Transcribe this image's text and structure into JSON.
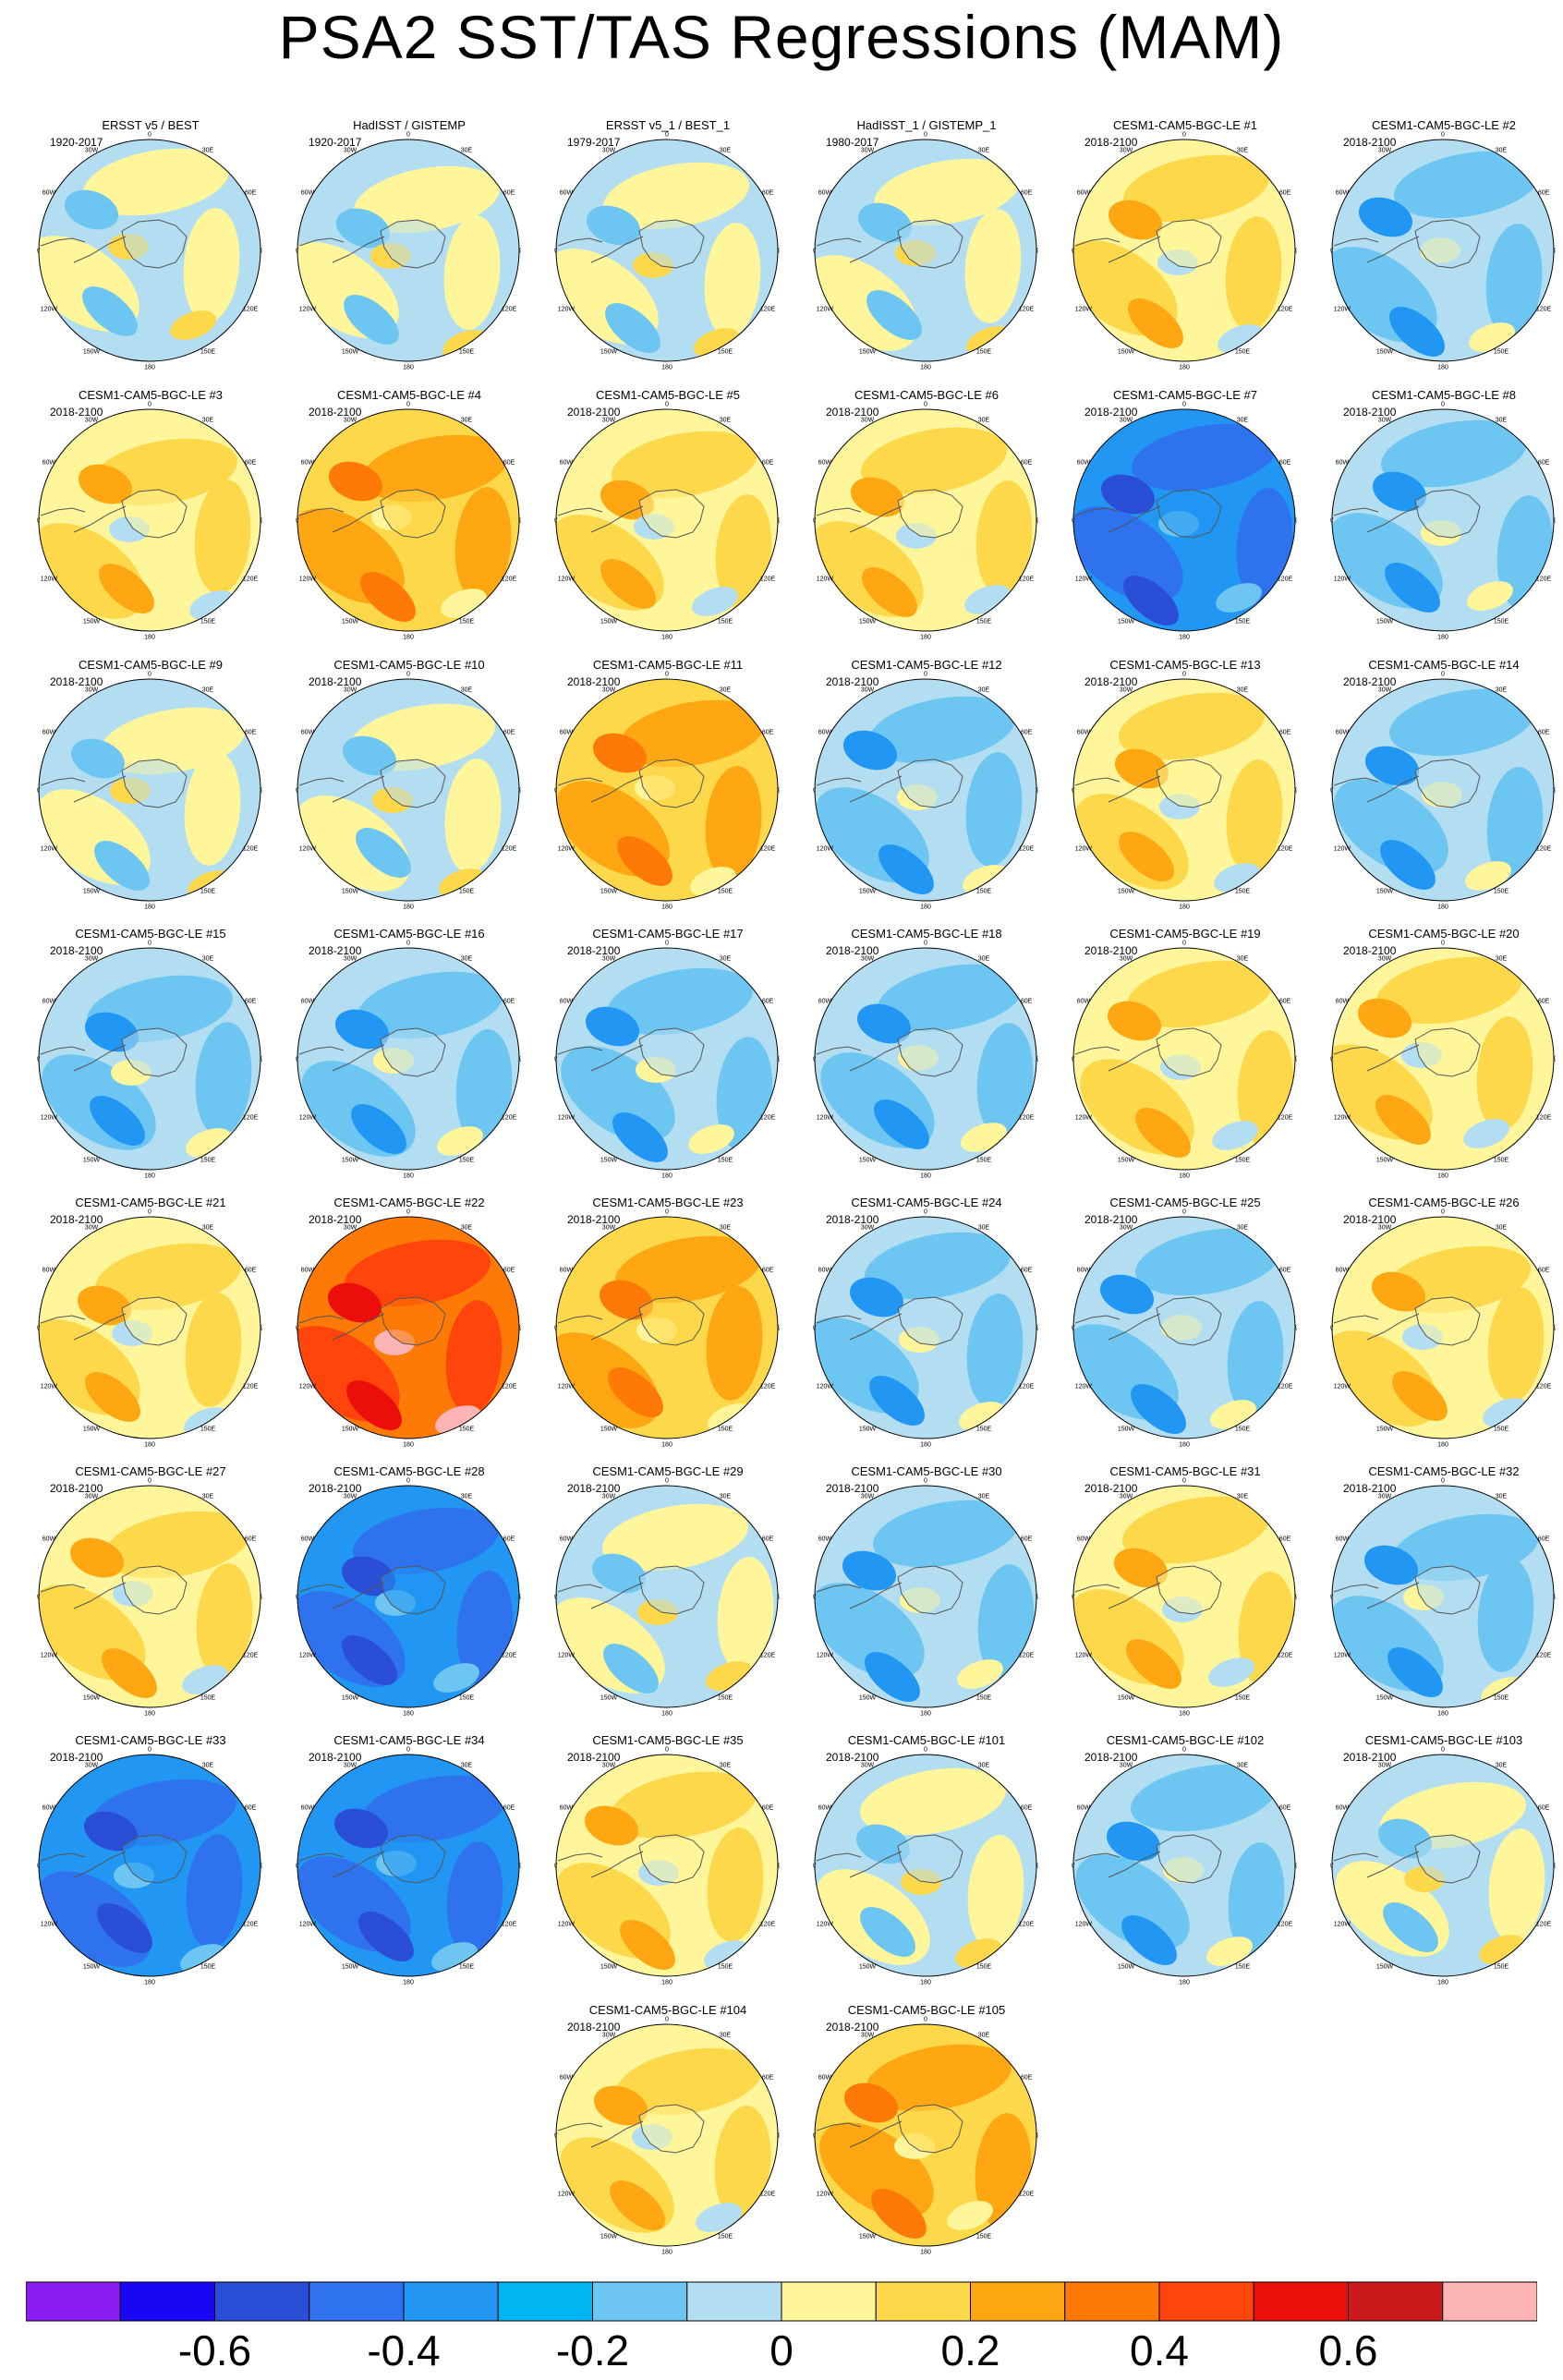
{
  "title": "PSA2 SST/TAS Regressions (MAM)",
  "panels": [
    {
      "title": "ERSST v5 / BEST",
      "years": "1920-2017",
      "pattern": "weak"
    },
    {
      "title": "HadISST / GISTEMP",
      "years": "1920-2017",
      "pattern": "weak"
    },
    {
      "title": "ERSST v5_1 / BEST_1",
      "years": "1979-2017",
      "pattern": "weak"
    },
    {
      "title": "HadISST_1 / GISTEMP_1",
      "years": "1980-2017",
      "pattern": "weak"
    },
    {
      "title": "CESM1-CAM5-BGC-LE #1",
      "years": "2018-2100",
      "pattern": "warm"
    },
    {
      "title": "CESM1-CAM5-BGC-LE #2",
      "years": "2018-2100",
      "pattern": "cool"
    },
    {
      "title": "CESM1-CAM5-BGC-LE #3",
      "years": "2018-2100",
      "pattern": "warm"
    },
    {
      "title": "CESM1-CAM5-BGC-LE #4",
      "years": "2018-2100",
      "pattern": "hot"
    },
    {
      "title": "CESM1-CAM5-BGC-LE #5",
      "years": "2018-2100",
      "pattern": "warm"
    },
    {
      "title": "CESM1-CAM5-BGC-LE #6",
      "years": "2018-2100",
      "pattern": "warm"
    },
    {
      "title": "CESM1-CAM5-BGC-LE #7",
      "years": "2018-2100",
      "pattern": "cold"
    },
    {
      "title": "CESM1-CAM5-BGC-LE #8",
      "years": "2018-2100",
      "pattern": "cool"
    },
    {
      "title": "CESM1-CAM5-BGC-LE #9",
      "years": "2018-2100",
      "pattern": "weak"
    },
    {
      "title": "CESM1-CAM5-BGC-LE #10",
      "years": "2018-2100",
      "pattern": "weak"
    },
    {
      "title": "CESM1-CAM5-BGC-LE #11",
      "years": "2018-2100",
      "pattern": "hot"
    },
    {
      "title": "CESM1-CAM5-BGC-LE #12",
      "years": "2018-2100",
      "pattern": "cool"
    },
    {
      "title": "CESM1-CAM5-BGC-LE #13",
      "years": "2018-2100",
      "pattern": "warm"
    },
    {
      "title": "CESM1-CAM5-BGC-LE #14",
      "years": "2018-2100",
      "pattern": "cool"
    },
    {
      "title": "CESM1-CAM5-BGC-LE #15",
      "years": "2018-2100",
      "pattern": "cool"
    },
    {
      "title": "CESM1-CAM5-BGC-LE #16",
      "years": "2018-2100",
      "pattern": "cool"
    },
    {
      "title": "CESM1-CAM5-BGC-LE #17",
      "years": "2018-2100",
      "pattern": "cool"
    },
    {
      "title": "CESM1-CAM5-BGC-LE #18",
      "years": "2018-2100",
      "pattern": "cool"
    },
    {
      "title": "CESM1-CAM5-BGC-LE #19",
      "years": "2018-2100",
      "pattern": "warm"
    },
    {
      "title": "CESM1-CAM5-BGC-LE #20",
      "years": "2018-2100",
      "pattern": "warm"
    },
    {
      "title": "CESM1-CAM5-BGC-LE #21",
      "years": "2018-2100",
      "pattern": "warm"
    },
    {
      "title": "CESM1-CAM5-BGC-LE #22",
      "years": "2018-2100",
      "pattern": "hottest"
    },
    {
      "title": "CESM1-CAM5-BGC-LE #23",
      "years": "2018-2100",
      "pattern": "hot"
    },
    {
      "title": "CESM1-CAM5-BGC-LE #24",
      "years": "2018-2100",
      "pattern": "cool"
    },
    {
      "title": "CESM1-CAM5-BGC-LE #25",
      "years": "2018-2100",
      "pattern": "cool"
    },
    {
      "title": "CESM1-CAM5-BGC-LE #26",
      "years": "2018-2100",
      "pattern": "warm"
    },
    {
      "title": "CESM1-CAM5-BGC-LE #27",
      "years": "2018-2100",
      "pattern": "warm"
    },
    {
      "title": "CESM1-CAM5-BGC-LE #28",
      "years": "2018-2100",
      "pattern": "cold"
    },
    {
      "title": "CESM1-CAM5-BGC-LE #29",
      "years": "2018-2100",
      "pattern": "weak"
    },
    {
      "title": "CESM1-CAM5-BGC-LE #30",
      "years": "2018-2100",
      "pattern": "cool"
    },
    {
      "title": "CESM1-CAM5-BGC-LE #31",
      "years": "2018-2100",
      "pattern": "warm"
    },
    {
      "title": "CESM1-CAM5-BGC-LE #32",
      "years": "2018-2100",
      "pattern": "cool"
    },
    {
      "title": "CESM1-CAM5-BGC-LE #33",
      "years": "2018-2100",
      "pattern": "cold"
    },
    {
      "title": "CESM1-CAM5-BGC-LE #34",
      "years": "2018-2100",
      "pattern": "cold"
    },
    {
      "title": "CESM1-CAM5-BGC-LE #35",
      "years": "2018-2100",
      "pattern": "warm"
    },
    {
      "title": "CESM1-CAM5-BGC-LE #101",
      "years": "2018-2100",
      "pattern": "weak"
    },
    {
      "title": "CESM1-CAM5-BGC-LE #102",
      "years": "2018-2100",
      "pattern": "cool"
    },
    {
      "title": "CESM1-CAM5-BGC-LE #103",
      "years": "2018-2100",
      "pattern": "weak"
    },
    {
      "title": "CESM1-CAM5-BGC-LE #104",
      "years": "2018-2100",
      "pattern": "warm"
    },
    {
      "title": "CESM1-CAM5-BGC-LE #105",
      "years": "2018-2100",
      "pattern": "hot"
    }
  ],
  "map_labels": [
    "0",
    "30E",
    "60E",
    "90E",
    "120E",
    "150E",
    "180",
    "150W",
    "120W",
    "90W",
    "60W",
    "30W"
  ],
  "colorbar": {
    "colors": [
      "#8a1df0",
      "#1a06f4",
      "#2a4ed6",
      "#2f72ee",
      "#2196f3",
      "#00b6f2",
      "#6cc6f1",
      "#b3def2",
      "#fff59a",
      "#fed84b",
      "#fea712",
      "#fe7a07",
      "#ff450c",
      "#ec0e0a",
      "#cb1a1c",
      "#fdb4b4"
    ],
    "levels": [
      -0.7,
      -0.6,
      -0.5,
      -0.4,
      -0.3,
      -0.2,
      -0.1,
      0,
      0.1,
      0.2,
      0.3,
      0.4,
      0.5,
      0.6,
      0.7
    ],
    "labels": [
      "-0.6",
      "-0.4",
      "-0.2",
      "0",
      "0.2",
      "0.4",
      "0.6"
    ]
  }
}
